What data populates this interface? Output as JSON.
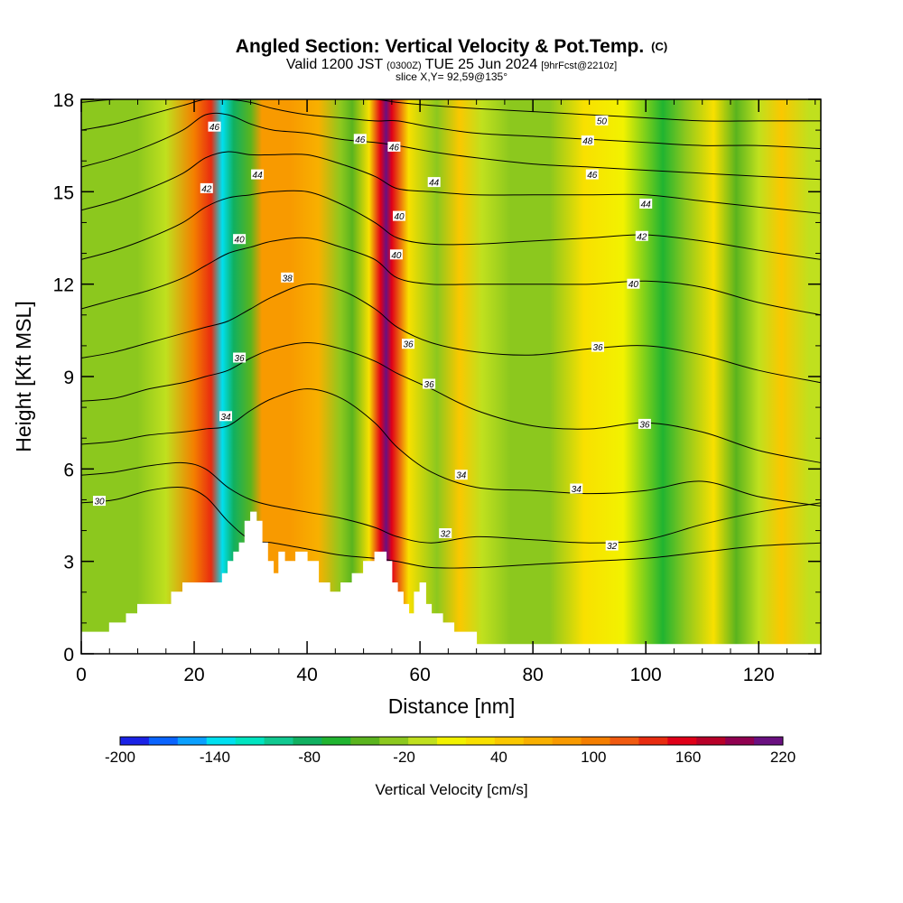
{
  "chart_data": {
    "type": "heatmap",
    "title": "Angled Section: Vertical Velocity & Pot.Temp.",
    "title_mark": "(C)",
    "subtitle_parts": [
      "Valid 1200 JST",
      "(0300Z)",
      "TUE 25 Jun 2024",
      "[9hrFcst@2210z]"
    ],
    "slice_info": "slice X,Y= 92,59@135°",
    "xlabel": "Distance [nm]",
    "ylabel": "Height [Kft MSL]",
    "xlim": [
      0,
      131
    ],
    "ylim": [
      0,
      18
    ],
    "x_ticks": [
      0,
      20,
      40,
      60,
      80,
      100,
      120
    ],
    "y_ticks": [
      0,
      3,
      6,
      9,
      12,
      15,
      18
    ],
    "colorbar": {
      "label": "Vertical Velocity [cm/s]",
      "range": [
        -200,
        220
      ],
      "tick_values": [
        -200,
        -140,
        -80,
        -20,
        40,
        100,
        160,
        220
      ],
      "tick_labels": [
        "-200",
        "-140",
        "-80",
        "-20",
        "40",
        "100",
        "160",
        "220"
      ],
      "colors": [
        "#1a22e6",
        "#0a64ff",
        "#0aa0ff",
        "#00e0f0",
        "#00e4c0",
        "#10c890",
        "#10b060",
        "#20b430",
        "#5ab41e",
        "#8cc81e",
        "#c0e01e",
        "#f2f200",
        "#f8e000",
        "#fac800",
        "#f8b000",
        "#f89a00",
        "#f47e00",
        "#f05a10",
        "#e82c10",
        "#e00018",
        "#b80028",
        "#900050",
        "#6a1080"
      ]
    },
    "velocity_columns": [
      {
        "x": 10,
        "value": -30
      },
      {
        "x": 15,
        "value": -10
      },
      {
        "x": 20,
        "value": 100
      },
      {
        "x": 23,
        "value": 130
      },
      {
        "x": 25,
        "value": -140
      },
      {
        "x": 27,
        "value": -80
      },
      {
        "x": 30,
        "value": -40
      },
      {
        "x": 32,
        "value": 90
      },
      {
        "x": 37,
        "value": 80
      },
      {
        "x": 42,
        "value": 70
      },
      {
        "x": 46,
        "value": -20
      },
      {
        "x": 48,
        "value": -50
      },
      {
        "x": 51,
        "value": 30
      },
      {
        "x": 53,
        "value": 160
      },
      {
        "x": 54,
        "value": 210
      },
      {
        "x": 55,
        "value": 150
      },
      {
        "x": 58,
        "value": 20
      },
      {
        "x": 63,
        "value": -20
      },
      {
        "x": 67,
        "value": 40
      },
      {
        "x": 71,
        "value": -10
      },
      {
        "x": 76,
        "value": -30
      },
      {
        "x": 83,
        "value": -25
      },
      {
        "x": 89,
        "value": 20
      },
      {
        "x": 96,
        "value": 10
      },
      {
        "x": 103,
        "value": -60
      },
      {
        "x": 107,
        "value": -20
      },
      {
        "x": 112,
        "value": 30
      },
      {
        "x": 116,
        "value": -50
      },
      {
        "x": 120,
        "value": 0
      },
      {
        "x": 124,
        "value": 40
      },
      {
        "x": 129,
        "value": -10
      }
    ],
    "terrain": {
      "x": [
        0,
        2,
        5,
        8,
        10,
        13,
        16,
        18,
        20,
        22,
        24,
        25,
        26,
        27,
        28,
        29,
        30,
        31,
        32,
        33,
        34,
        35,
        36,
        38,
        40,
        42,
        44,
        46,
        48,
        50,
        52,
        54,
        55,
        56,
        57,
        58,
        59,
        60,
        61,
        62,
        64,
        66,
        68,
        70,
        72,
        131
      ],
      "height": [
        0.7,
        0.7,
        1.0,
        1.3,
        1.6,
        1.6,
        2.0,
        2.3,
        2.3,
        2.3,
        2.3,
        2.6,
        3.0,
        3.3,
        3.6,
        4.3,
        4.6,
        4.3,
        3.6,
        3.0,
        2.6,
        3.3,
        3.0,
        3.3,
        3.0,
        2.3,
        2.0,
        2.3,
        2.6,
        3.0,
        3.3,
        3.0,
        2.3,
        2.0,
        1.6,
        1.3,
        2.0,
        2.3,
        1.6,
        1.3,
        1.0,
        0.7,
        0.7,
        0.3,
        0.3,
        0.3
      ]
    },
    "isentropes": [
      {
        "label": "30",
        "x": [
          0,
          6,
          12,
          18,
          22,
          26,
          30,
          34,
          40,
          46,
          52,
          56,
          62,
          70,
          80,
          90,
          100,
          110,
          120,
          131
        ],
        "y": [
          4.9,
          5.0,
          5.3,
          5.4,
          5.1,
          4.3,
          3.7,
          3.6,
          3.4,
          3.2,
          3.1,
          3.0,
          2.8,
          2.8,
          2.9,
          3.0,
          3.1,
          3.3,
          3.5,
          3.6
        ]
      },
      {
        "label": "32",
        "x": [
          0,
          6,
          12,
          18,
          22,
          26,
          30,
          34,
          40,
          46,
          52,
          56,
          62,
          70,
          80,
          90,
          100,
          110,
          120,
          131
        ],
        "y": [
          5.8,
          5.9,
          6.1,
          6.2,
          6.0,
          5.4,
          5.0,
          4.8,
          4.6,
          4.4,
          4.1,
          3.8,
          3.6,
          3.8,
          3.7,
          3.6,
          3.7,
          4.2,
          4.6,
          4.9
        ]
      },
      {
        "label": "34",
        "x": [
          0,
          6,
          12,
          18,
          22,
          26,
          30,
          34,
          40,
          46,
          52,
          56,
          62,
          70,
          80,
          90,
          100,
          110,
          120,
          131
        ],
        "y": [
          6.8,
          6.9,
          7.1,
          7.2,
          7.3,
          7.4,
          7.9,
          8.3,
          8.6,
          8.3,
          7.5,
          6.7,
          5.9,
          5.4,
          5.3,
          5.2,
          5.3,
          5.6,
          5.1,
          4.8
        ]
      },
      {
        "label": "36",
        "x": [
          0,
          6,
          12,
          18,
          22,
          26,
          30,
          34,
          40,
          46,
          52,
          56,
          62,
          70,
          80,
          90,
          100,
          110,
          120,
          131
        ],
        "y": [
          8.2,
          8.3,
          8.6,
          8.8,
          9.0,
          9.2,
          9.6,
          9.9,
          10.1,
          9.9,
          9.5,
          9.1,
          8.6,
          7.9,
          7.4,
          7.3,
          7.5,
          7.2,
          6.6,
          6.2
        ]
      },
      {
        "label": "38",
        "x": [
          0,
          6,
          12,
          18,
          22,
          26,
          30,
          34,
          40,
          46,
          52,
          56,
          62,
          70,
          80,
          90,
          100,
          110,
          120,
          131
        ],
        "y": [
          9.6,
          9.8,
          10.1,
          10.4,
          10.6,
          10.8,
          11.2,
          11.6,
          12.0,
          11.8,
          11.2,
          10.6,
          10.1,
          9.8,
          9.7,
          9.9,
          10.0,
          9.7,
          9.2,
          8.8
        ]
      },
      {
        "label": "40",
        "x": [
          0,
          6,
          12,
          18,
          22,
          26,
          30,
          34,
          40,
          46,
          52,
          56,
          62,
          70,
          80,
          90,
          100,
          110,
          120,
          131
        ],
        "y": [
          11.2,
          11.5,
          11.8,
          12.2,
          12.6,
          13.0,
          13.2,
          13.4,
          13.5,
          13.2,
          12.8,
          12.2,
          12.0,
          12.0,
          12.0,
          12.0,
          12.1,
          11.9,
          11.4,
          11.0
        ]
      },
      {
        "label": "42",
        "x": [
          0,
          6,
          12,
          18,
          22,
          26,
          30,
          34,
          40,
          46,
          52,
          56,
          62,
          70,
          80,
          90,
          100,
          110,
          120,
          131
        ],
        "y": [
          12.8,
          13.1,
          13.5,
          14.0,
          14.5,
          14.8,
          14.9,
          15.0,
          15.0,
          14.6,
          14.0,
          13.5,
          13.3,
          13.3,
          13.4,
          13.5,
          13.6,
          13.4,
          13.1,
          12.8
        ]
      },
      {
        "label": "44",
        "x": [
          0,
          6,
          12,
          18,
          22,
          26,
          30,
          34,
          40,
          46,
          52,
          56,
          62,
          70,
          80,
          90,
          100,
          110,
          120,
          131
        ],
        "y": [
          14.4,
          14.7,
          15.1,
          15.6,
          16.1,
          16.3,
          16.2,
          16.2,
          16.2,
          15.9,
          15.5,
          15.1,
          15.0,
          14.9,
          14.9,
          14.9,
          14.9,
          14.7,
          14.5,
          14.3
        ]
      },
      {
        "label": "46",
        "x": [
          0,
          6,
          12,
          18,
          22,
          26,
          30,
          34,
          40,
          46,
          52,
          56,
          62,
          70,
          80,
          90,
          100,
          110,
          120,
          131
        ],
        "y": [
          15.8,
          16.1,
          16.5,
          17.0,
          17.5,
          17.5,
          17.2,
          17.0,
          16.9,
          16.7,
          16.6,
          16.5,
          16.3,
          16.1,
          15.9,
          15.8,
          15.7,
          15.6,
          15.5,
          15.4
        ]
      },
      {
        "label": "48",
        "x": [
          0,
          6,
          12,
          18,
          22,
          26,
          30,
          34,
          40,
          46,
          52,
          56,
          62,
          70,
          80,
          90,
          100,
          110,
          120,
          131
        ],
        "y": [
          17.0,
          17.2,
          17.5,
          17.8,
          18.0,
          18.0,
          17.9,
          17.7,
          17.5,
          17.4,
          17.3,
          17.3,
          17.1,
          16.9,
          16.8,
          16.7,
          16.6,
          16.5,
          16.5,
          16.4
        ]
      },
      {
        "label": "50",
        "x": [
          0,
          6,
          12,
          18,
          22,
          26,
          30,
          34,
          40,
          46,
          52,
          56,
          62,
          70,
          80,
          90,
          100,
          110,
          120,
          131
        ],
        "y": [
          17.9,
          18.0,
          18.0,
          18.0,
          18.0,
          18.0,
          18.0,
          18.0,
          18.0,
          18.0,
          18.0,
          17.9,
          17.8,
          17.7,
          17.6,
          17.5,
          17.4,
          17.3,
          17.3,
          17.3
        ]
      }
    ],
    "contour_labels": [
      {
        "text": "30",
        "x": 3.2,
        "y": 4.95
      },
      {
        "text": "32",
        "x": 64.5,
        "y": 3.9
      },
      {
        "text": "32",
        "x": 94,
        "y": 3.5
      },
      {
        "text": "34",
        "x": 25.6,
        "y": 7.7
      },
      {
        "text": "34",
        "x": 67.3,
        "y": 5.8
      },
      {
        "text": "34",
        "x": 87.7,
        "y": 5.35
      },
      {
        "text": "36",
        "x": 28,
        "y": 9.6
      },
      {
        "text": "36",
        "x": 61.6,
        "y": 8.75
      },
      {
        "text": "36",
        "x": 57.9,
        "y": 10.05
      },
      {
        "text": "36",
        "x": 91.5,
        "y": 9.95
      },
      {
        "text": "36",
        "x": 99.8,
        "y": 7.45
      },
      {
        "text": "38",
        "x": 36.5,
        "y": 12.2
      },
      {
        "text": "40",
        "x": 28,
        "y": 13.45
      },
      {
        "text": "40",
        "x": 55.8,
        "y": 12.95
      },
      {
        "text": "40",
        "x": 56.3,
        "y": 14.2
      },
      {
        "text": "40",
        "x": 97.8,
        "y": 12.0
      },
      {
        "text": "42",
        "x": 22.2,
        "y": 15.1
      },
      {
        "text": "42",
        "x": 99.3,
        "y": 13.55
      },
      {
        "text": "44",
        "x": 31.2,
        "y": 15.55
      },
      {
        "text": "44",
        "x": 62.5,
        "y": 15.3
      },
      {
        "text": "44",
        "x": 100,
        "y": 14.6
      },
      {
        "text": "46",
        "x": 23.6,
        "y": 17.1
      },
      {
        "text": "46",
        "x": 49.4,
        "y": 16.7
      },
      {
        "text": "46",
        "x": 55.4,
        "y": 16.45
      },
      {
        "text": "46",
        "x": 90.5,
        "y": 15.55
      },
      {
        "text": "48",
        "x": 89.7,
        "y": 16.65
      },
      {
        "text": "50",
        "x": 92.2,
        "y": 17.3
      }
    ]
  }
}
